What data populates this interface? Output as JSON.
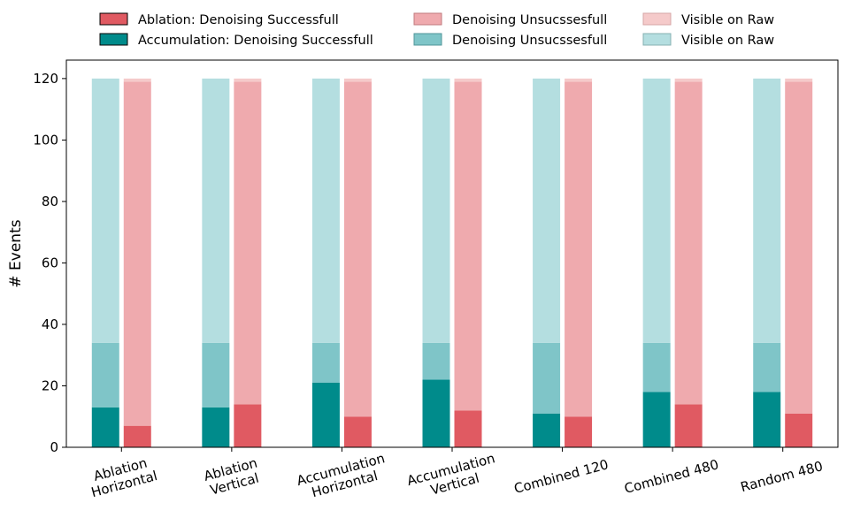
{
  "chart_data": {
    "type": "bar",
    "stacked": true,
    "grouped": true,
    "categories": [
      [
        "Ablation",
        "Horizontal"
      ],
      [
        "Ablation",
        "Vertical"
      ],
      [
        "Accumulation",
        "Horizontal"
      ],
      [
        "Accumulation",
        "Vertical"
      ],
      [
        "Combined 120"
      ],
      [
        "Combined 480"
      ],
      [
        "Random 480"
      ]
    ],
    "ylabel": "# Events",
    "ylim": [
      0,
      126
    ],
    "yticks": [
      0,
      20,
      40,
      60,
      80,
      100,
      120
    ],
    "legend_position": "top-center",
    "groups": [
      {
        "key": "accumulation",
        "segments": [
          {
            "name": "Accumulation: Denoising Successfull",
            "color": "#008b8b",
            "values": [
              13,
              13,
              21,
              22,
              11,
              18,
              18
            ]
          },
          {
            "name": "Denoising Unsucssesfull",
            "color": "#7fc5c8",
            "values": [
              21,
              21,
              13,
              12,
              23,
              16,
              16
            ]
          },
          {
            "name": "Visible on Raw",
            "color": "#b4dee0",
            "values": [
              86,
              86,
              86,
              86,
              86,
              86,
              86
            ]
          }
        ]
      },
      {
        "key": "ablation",
        "segments": [
          {
            "name": "Ablation: Denoising Successfull",
            "color": "#e05a62",
            "values": [
              7,
              14,
              10,
              12,
              10,
              14,
              11
            ]
          },
          {
            "name": "Denoising Unsucssesfull",
            "color": "#efaaae",
            "values": [
              112,
              105,
              109,
              107,
              109,
              105,
              108
            ]
          },
          {
            "name": "Visible on Raw",
            "color": "#f5caca",
            "values": [
              1,
              1,
              1,
              1,
              1,
              1,
              1
            ]
          }
        ]
      }
    ],
    "legend": [
      {
        "label": "Ablation: Denoising Successfull",
        "color": "#e05a62",
        "edge": "#000000"
      },
      {
        "label": "Accumulation: Denoising Successfull",
        "color": "#008b8b",
        "edge": "#000000"
      },
      {
        "label": "Denoising Unsucssesfull",
        "color": "#efaaae",
        "edge": "#c07a7e"
      },
      {
        "label": "Denoising Unsucssesfull",
        "color": "#7fc5c8",
        "edge": "#4f9598"
      },
      {
        "label": "Visible on Raw",
        "color": "#f5caca",
        "edge": "#d6a6a6"
      },
      {
        "label": "Visible on Raw",
        "color": "#b4dee0",
        "edge": "#86b0b2"
      }
    ]
  }
}
